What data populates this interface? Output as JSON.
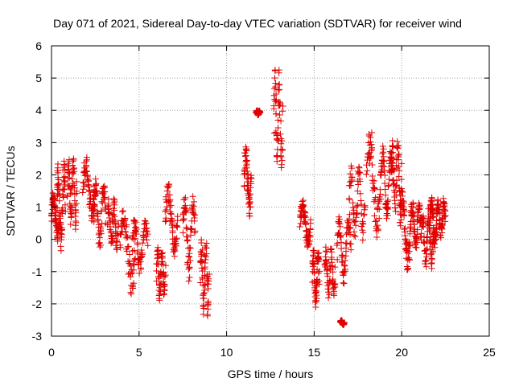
{
  "chart_data": {
    "type": "scatter",
    "title": "Day 071 of 2021, Sidereal Day-to-day VTEC variation (SDTVAR) for receiver wind",
    "xlabel": "GPS time / hours",
    "ylabel": "SDTVAR / TECUs",
    "xlim": [
      0,
      25
    ],
    "ylim": [
      -3,
      6
    ],
    "xticks": [
      0,
      5,
      10,
      15,
      20,
      25
    ],
    "yticks": [
      -3,
      -2,
      -1,
      0,
      1,
      2,
      3,
      4,
      5,
      6
    ],
    "grid": true,
    "marker": "+",
    "marker_color": "#e00000",
    "segments": [
      {
        "x": [
          0.0,
          0.45
        ],
        "y": [
          -0.1,
          1.5
        ]
      },
      {
        "x": [
          0.3,
          0.8
        ],
        "y": [
          -0.4,
          2.5
        ]
      },
      {
        "x": [
          0.9,
          1.45
        ],
        "y": [
          0.3,
          2.6
        ]
      },
      {
        "x": [
          1.8,
          2.5
        ],
        "y": [
          0.5,
          2.6
        ]
      },
      {
        "x": [
          2.4,
          3.1
        ],
        "y": [
          -0.3,
          1.9
        ]
      },
      {
        "x": [
          3.2,
          3.8
        ],
        "y": [
          -0.4,
          1.3
        ]
      },
      {
        "x": [
          3.9,
          4.8
        ],
        "y": [
          -1.7,
          1.0
        ]
      },
      {
        "x": [
          4.6,
          5.5
        ],
        "y": [
          -1.1,
          0.7
        ]
      },
      {
        "x": [
          6.0,
          6.5
        ],
        "y": [
          -1.9,
          -0.2
        ]
      },
      {
        "x": [
          6.5,
          7.2
        ],
        "y": [
          -0.6,
          1.8
        ]
      },
      {
        "x": [
          7.5,
          8.2
        ],
        "y": [
          -1.3,
          1.6
        ]
      },
      {
        "x": [
          8.5,
          9.0
        ],
        "y": [
          -2.5,
          0.1
        ]
      },
      {
        "x": [
          11.0,
          11.4
        ],
        "y": [
          0.7,
          3.0
        ]
      },
      {
        "x": [
          11.7,
          11.9
        ],
        "y": [
          3.85,
          4.0
        ]
      },
      {
        "x": [
          12.7,
          13.2
        ],
        "y": [
          2.2,
          5.3
        ]
      },
      {
        "x": [
          14.2,
          14.8
        ],
        "y": [
          -0.3,
          1.3
        ]
      },
      {
        "x": [
          14.9,
          15.3
        ],
        "y": [
          -2.2,
          -0.2
        ]
      },
      {
        "x": [
          15.6,
          16.2
        ],
        "y": [
          -1.9,
          -0.2
        ]
      },
      {
        "x": [
          16.5,
          16.7
        ],
        "y": [
          -2.65,
          -2.5
        ]
      },
      {
        "x": [
          16.3,
          17.1
        ],
        "y": [
          -1.5,
          0.9
        ]
      },
      {
        "x": [
          17.0,
          17.9
        ],
        "y": [
          -0.1,
          2.4
        ]
      },
      {
        "x": [
          18.0,
          18.8
        ],
        "y": [
          0.0,
          3.5
        ]
      },
      {
        "x": [
          18.8,
          19.5
        ],
        "y": [
          0.6,
          2.9
        ]
      },
      {
        "x": [
          19.4,
          20.0
        ],
        "y": [
          0.8,
          3.2
        ]
      },
      {
        "x": [
          19.9,
          20.5
        ],
        "y": [
          -1.0,
          1.5
        ]
      },
      {
        "x": [
          20.5,
          21.1
        ],
        "y": [
          -0.4,
          1.2
        ]
      },
      {
        "x": [
          21.1,
          21.8
        ],
        "y": [
          -1.0,
          1.0
        ]
      },
      {
        "x": [
          21.6,
          22.0
        ],
        "y": [
          -0.3,
          1.4
        ]
      },
      {
        "x": [
          22.0,
          22.5
        ],
        "y": [
          0.0,
          1.3
        ]
      }
    ]
  }
}
